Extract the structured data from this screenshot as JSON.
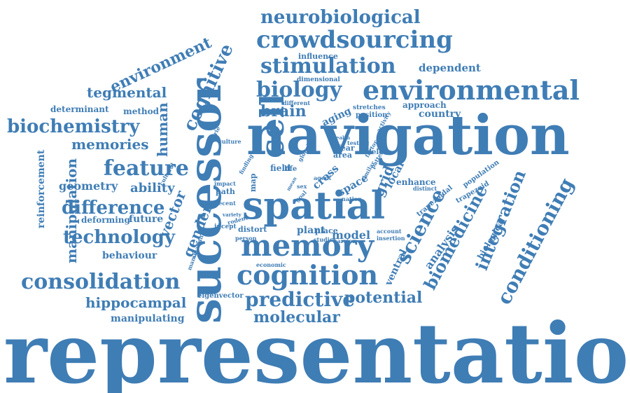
{
  "word_color": "#3f7db5",
  "background": "#ffffff",
  "words": [
    "representation",
    "navigation",
    "spatial",
    "successor",
    "memory",
    "cell",
    "cognition",
    "environmental",
    "crowdsourcing",
    "stimulation",
    "neurobiological",
    "biology",
    "consolidation",
    "biochemistry",
    "feature",
    "difference",
    "technology",
    "predictive",
    "potential",
    "molecular",
    "hippocampal",
    "conditioning",
    "science",
    "biomedicine",
    "integration",
    "environment",
    "cognitive",
    "tegmental",
    "memories",
    "manipulation",
    "human",
    "gender",
    "vector",
    "brain",
    "geometry",
    "ability",
    "manipulating",
    "behaviour",
    "deforming",
    "future",
    "reinforcement",
    "determinant",
    "method",
    "dependent",
    "country",
    "approach",
    "grid",
    "local",
    "analysis",
    "biological",
    "trapezoidal",
    "trapezoid",
    "population",
    "enhance",
    "ventral",
    "model",
    "plant",
    "place",
    "distort",
    "incept",
    "path",
    "map",
    "field",
    "life",
    "cross",
    "space",
    "area",
    "fear",
    "delete",
    "aging",
    "position",
    "stretches",
    "different",
    "dimensional",
    "influence",
    "eigenvector",
    "economic",
    "mammalian",
    "cultural",
    "countrie",
    "culture",
    "finding",
    "impact",
    "recent",
    "variety",
    "rodent",
    "person",
    "studies",
    "barrier",
    "account",
    "insertion",
    "nation",
    "distinct",
    "wealth",
    "global",
    "testing",
    "activity",
    "pattern",
    "factor",
    "similar",
    "goal",
    "agent",
    "mean",
    "sex"
  ]
}
